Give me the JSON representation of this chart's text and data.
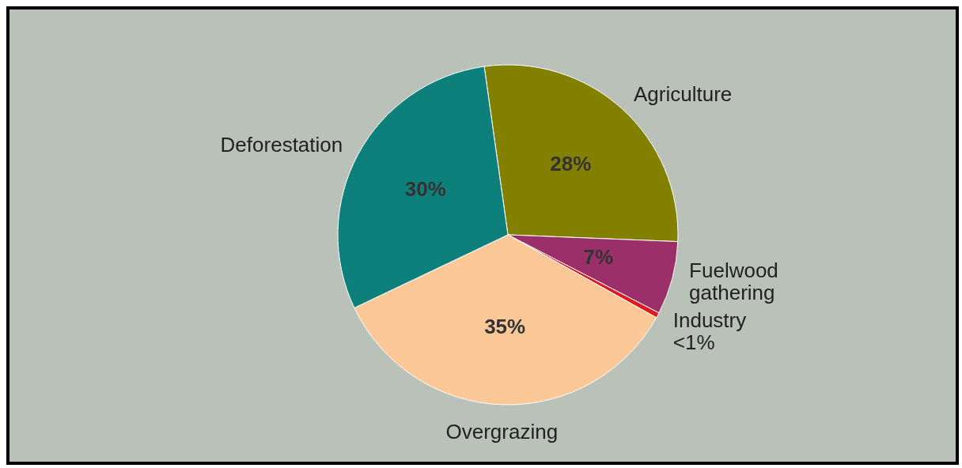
{
  "chart_data": {
    "type": "pie",
    "categories": [
      "Agriculture",
      "Fuelwood gathering",
      "Industry",
      "Overgrazing",
      "Deforestation"
    ],
    "values": [
      28,
      7,
      0.5,
      35,
      30
    ],
    "colors": [
      "#838000",
      "#9a2f6a",
      "#e0191e",
      "#fcc898",
      "#0e807c"
    ],
    "value_labels": [
      "28%",
      "7%",
      "<1%",
      "35%",
      "30%"
    ]
  }
}
